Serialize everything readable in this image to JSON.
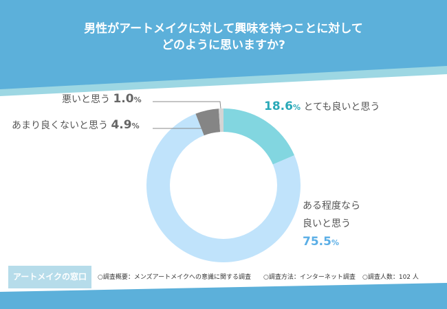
{
  "header": {
    "title_line1": "男性がアートメイクに対して興味を持つことに対して",
    "title_line2": "どのように思いますか?"
  },
  "chart_data": {
    "type": "pie",
    "donut": true,
    "title": "男性がアートメイクに対して興味を持つことに対してどのように思いますか?",
    "slices": [
      {
        "label": "とても良いと思う",
        "value": 18.6,
        "color": "#82d6e0",
        "label_color": "#2aa9b8"
      },
      {
        "label": "ある程度なら良いと思う",
        "value": 75.5,
        "color": "#c0e3fb",
        "label_color": "#5aaee6"
      },
      {
        "label": "あまり良くないと思う",
        "value": 4.9,
        "color": "#858585",
        "label_color": "#666666"
      },
      {
        "label": "悪いと思う",
        "value": 1.0,
        "color": "#d4d4d4",
        "label_color": "#666666"
      }
    ],
    "unit": "%"
  },
  "labels": {
    "s0_text": "とても良いと思う",
    "s0_value": "18.6",
    "s1_text_line1": "ある程度なら",
    "s1_text_line2": "良いと思う",
    "s1_value": "75.5",
    "s2_text": "あまり良くないと思う",
    "s2_value": "4.9",
    "s3_text": "悪いと思う",
    "s3_value": "1.0",
    "unit": "%"
  },
  "footer": {
    "brand": "アートメイクの窓口",
    "summary": "○調査概要：メンズアートメイクへの意識に関する調査",
    "method": "○調査方法：インターネット調査",
    "count": "○調査人数：102 人"
  },
  "colors": {
    "header_blue": "#5cb0da",
    "header_band": "#9dd7e3"
  }
}
